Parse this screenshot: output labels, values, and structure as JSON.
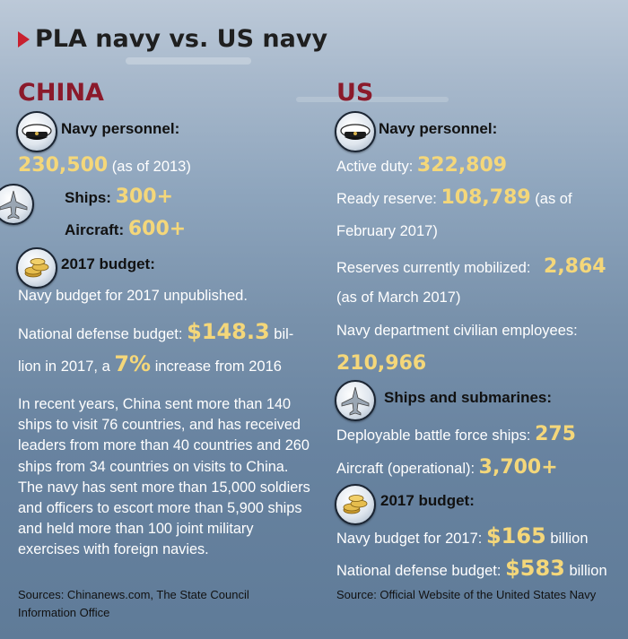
{
  "title": "PLA navy vs. US navy",
  "icons": {
    "cap": "navy-cap-icon",
    "jet": "fighter-jet-icon",
    "coins": "gold-coins-icon"
  },
  "colors": {
    "heading_red": "#8b1a2b",
    "value_gold": "#f4d77a",
    "arrow_red": "#c8202f"
  },
  "china": {
    "heading": "CHINA",
    "personnel_label": "Navy personnel:",
    "personnel_value": "230,500",
    "personnel_note": "(as of 2013)",
    "ships_label": "Ships:",
    "ships_value": "300+",
    "aircraft_label": "Aircraft:",
    "aircraft_value": "600+",
    "budget_label": "2017 budget:",
    "budget_unpublished": "Navy budget for 2017 unpublished.",
    "defense_prefix": "National defense budget:",
    "defense_value": "$148.3",
    "defense_suffix": "bil-",
    "defense_line2_prefix": "lion in 2017, a",
    "defense_increase": "7%",
    "defense_line2_suffix": "increase from 2016",
    "paragraph": "In recent years, China sent more than 140 ships to visit 76 countries, and has received leaders from more than 40 countries and 260 ships from 34 countries on visits to China. The navy has sent more than 15,000 soldiers and officers to escort more than 5,900 ships and held more than 100 joint military exercises with foreign navies.",
    "source_line1": "Sources: Chinanews.com, The State Council",
    "source_line2": "Information Office"
  },
  "us": {
    "heading": "US",
    "personnel_label": "Navy personnel:",
    "active_label": "Active duty:",
    "active_value": "322,809",
    "reserve_label": "Ready reserve:",
    "reserve_value": "108,789",
    "reserve_note1": "(as of",
    "reserve_note2": "February 2017)",
    "mobilized_label": "Reserves currently mobilized:",
    "mobilized_value": "2,864",
    "mobilized_note": "(as of March 2017)",
    "civilian_label": "Navy department civilian employees:",
    "civilian_value": "210,966",
    "ships_label": "Ships and submarines:",
    "deployable_label": "Deployable battle force ships:",
    "deployable_value": "275",
    "aircraft_label": "Aircraft (operational):",
    "aircraft_value": "3,700+",
    "budget_label": "2017 budget:",
    "navy_budget_label": "Navy budget for 2017:",
    "navy_budget_value": "$165",
    "navy_budget_unit": "billion",
    "defense_label": "National defense budget:",
    "defense_value": "$583",
    "defense_unit": "billion",
    "source": "Source: Official Website of the United States Navy"
  }
}
